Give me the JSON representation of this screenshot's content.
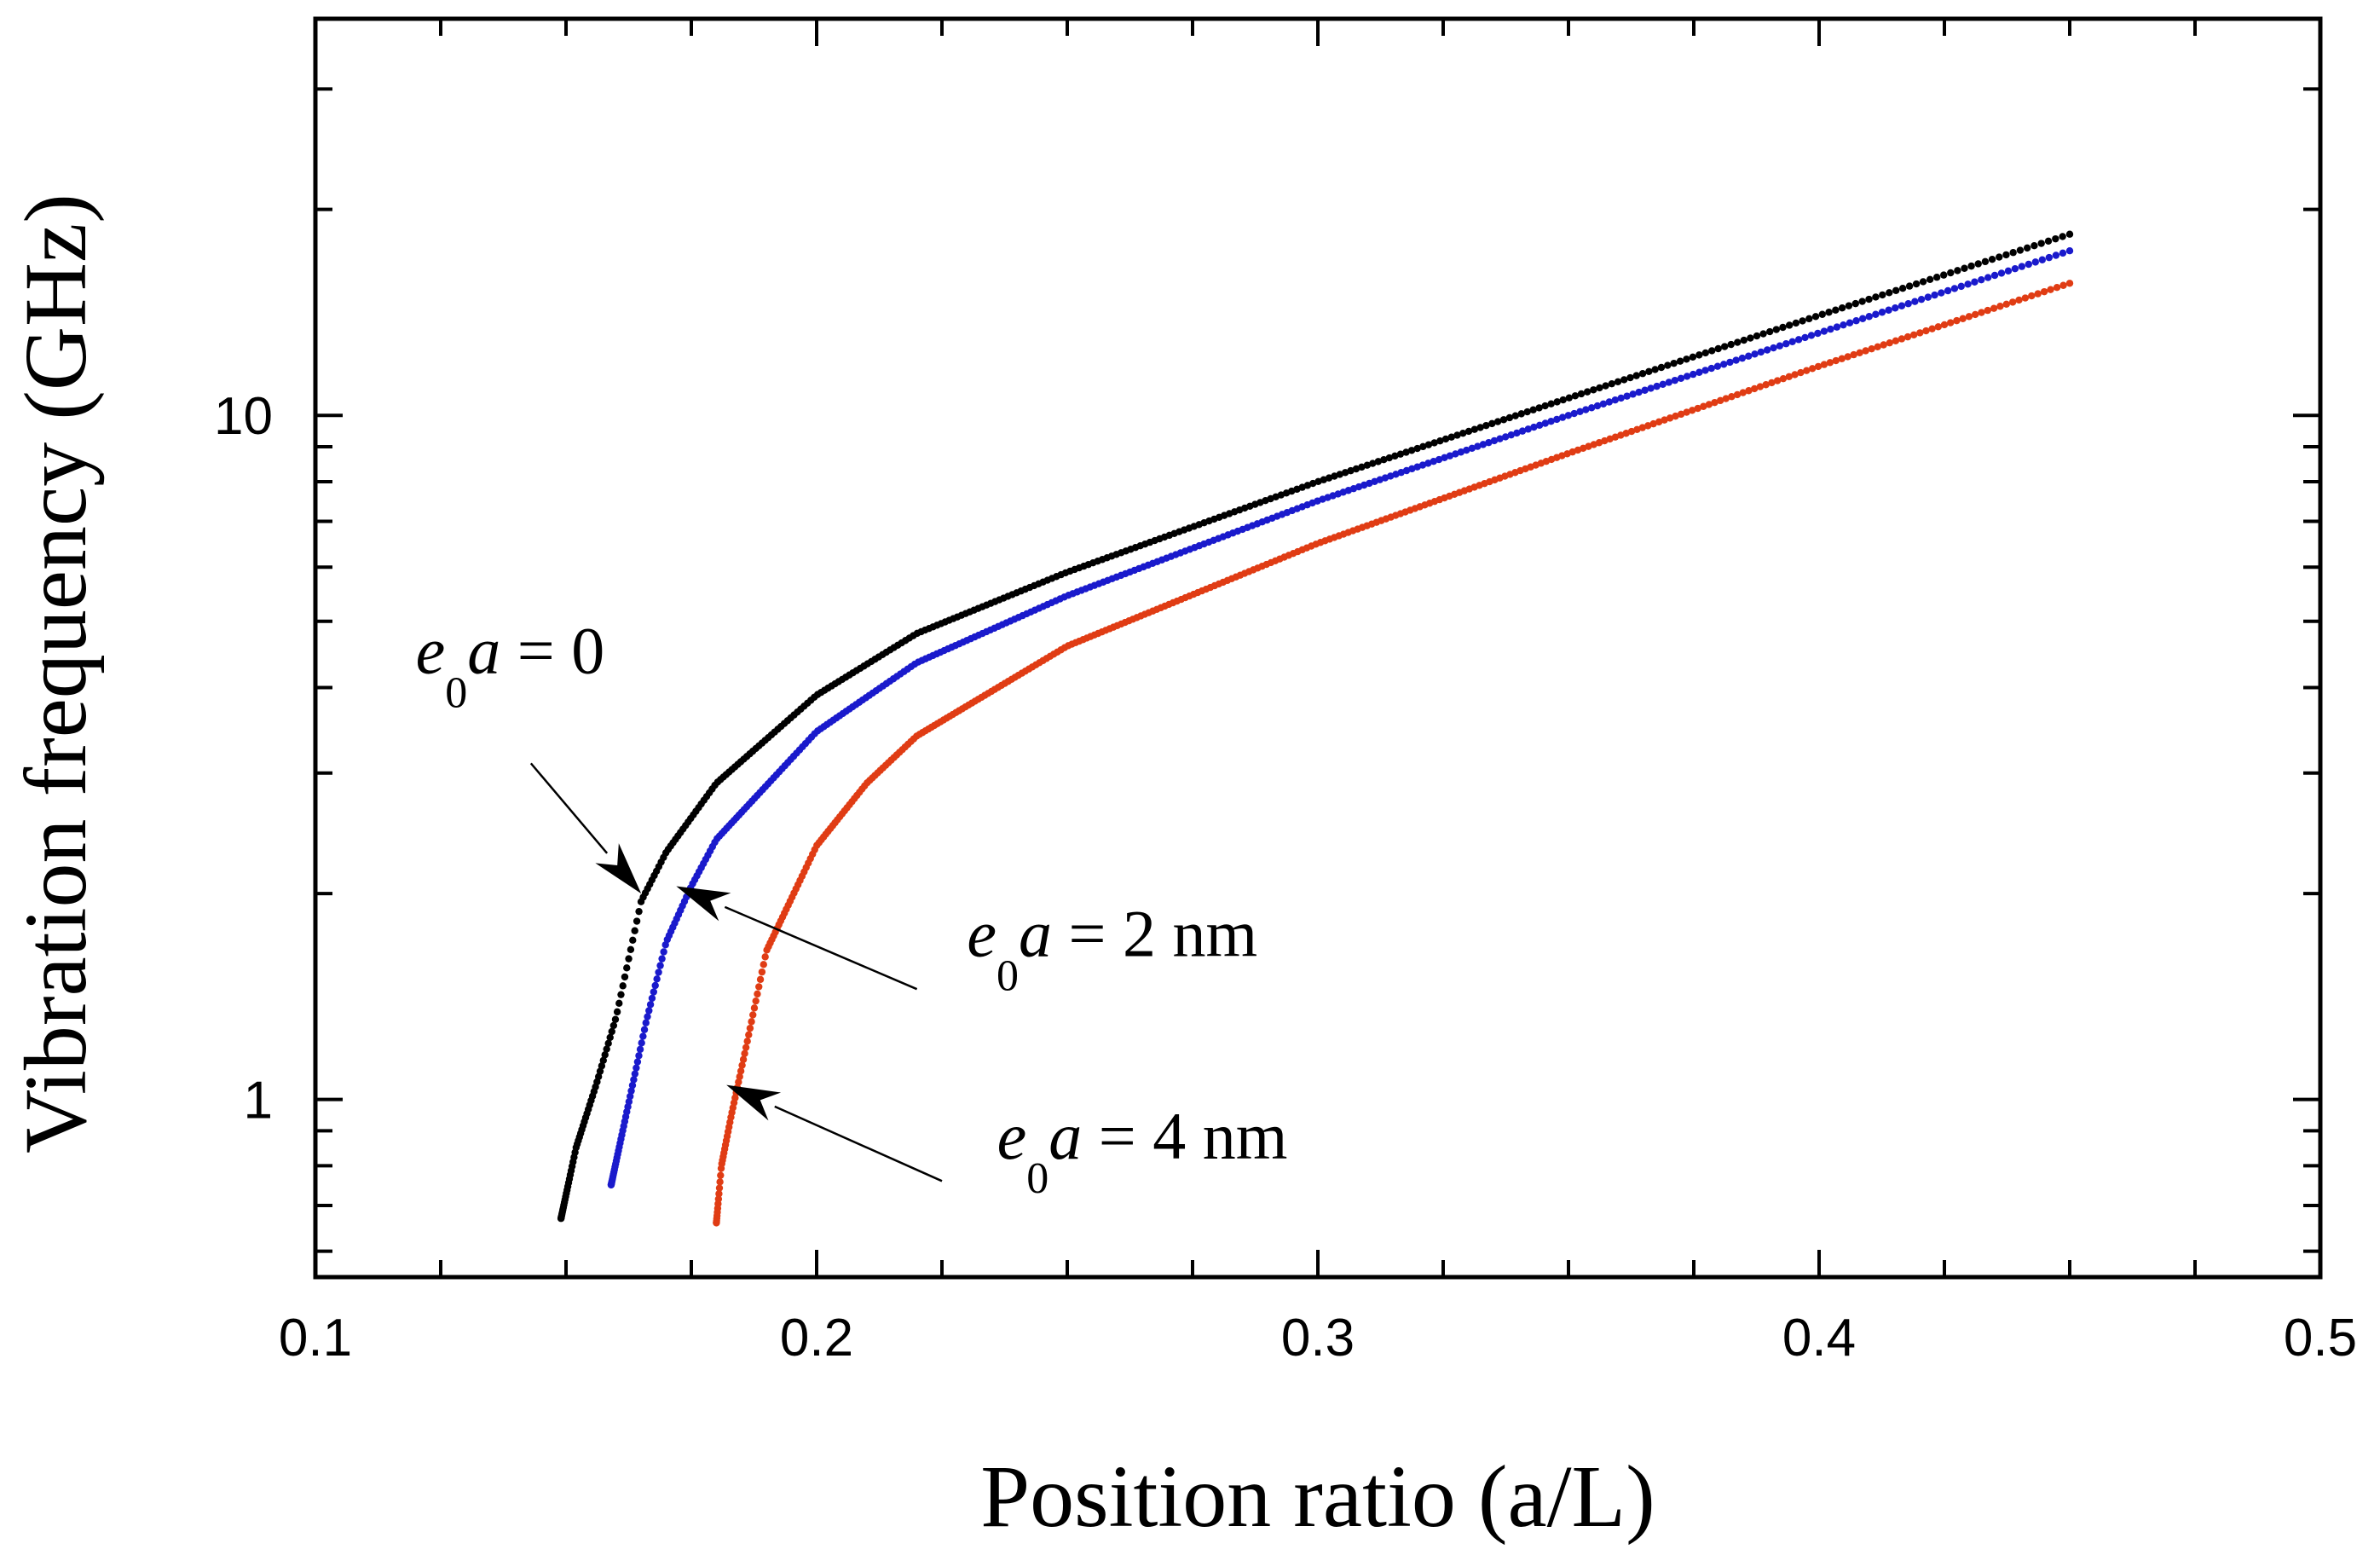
{
  "chart_data": {
    "type": "scatter",
    "title": "",
    "xlabel": "Position ratio (a/L)",
    "ylabel": "Vibration frequency (GHz)",
    "xlim": [
      0.1,
      0.5
    ],
    "ylim": [
      0.55,
      38
    ],
    "yscale": "log",
    "x_tick_labels": [
      "0.1",
      "0.2",
      "0.3",
      "0.4",
      "0.5"
    ],
    "x_ticks": [
      0.1,
      0.2,
      0.3,
      0.4,
      0.5
    ],
    "y_tick_labels": [
      "1",
      "10"
    ],
    "y_ticks": [
      1,
      10
    ],
    "series": [
      {
        "name": "e0a = 0",
        "color": "#000000",
        "x_start": 0.149,
        "x_end": 0.45,
        "anchors": [
          [
            0.149,
            0.67
          ],
          [
            0.152,
            0.85
          ],
          [
            0.156,
            1.05
          ],
          [
            0.16,
            1.32
          ],
          [
            0.165,
            1.95
          ],
          [
            0.17,
            2.3
          ],
          [
            0.18,
            2.9
          ],
          [
            0.2,
            3.9
          ],
          [
            0.22,
            4.8
          ],
          [
            0.25,
            5.9
          ],
          [
            0.3,
            8.0
          ],
          [
            0.35,
            10.6
          ],
          [
            0.4,
            14.0
          ],
          [
            0.45,
            18.4
          ]
        ]
      },
      {
        "name": "e0a = 2 nm",
        "color": "#1a1acc",
        "x_start": 0.159,
        "x_end": 0.45,
        "anchors": [
          [
            0.159,
            0.75
          ],
          [
            0.162,
            0.95
          ],
          [
            0.166,
            1.3
          ],
          [
            0.17,
            1.7
          ],
          [
            0.175,
            2.05
          ],
          [
            0.18,
            2.4
          ],
          [
            0.2,
            3.45
          ],
          [
            0.22,
            4.35
          ],
          [
            0.25,
            5.45
          ],
          [
            0.3,
            7.5
          ],
          [
            0.35,
            10.0
          ],
          [
            0.4,
            13.2
          ],
          [
            0.45,
            17.4
          ]
        ]
      },
      {
        "name": "e0a = 4 nm",
        "color": "#e03c14",
        "x_start": 0.18,
        "x_end": 0.45,
        "anchors": [
          [
            0.18,
            0.66
          ],
          [
            0.181,
            0.8
          ],
          [
            0.183,
            0.95
          ],
          [
            0.186,
            1.2
          ],
          [
            0.19,
            1.65
          ],
          [
            0.2,
            2.35
          ],
          [
            0.21,
            2.9
          ],
          [
            0.22,
            3.4
          ],
          [
            0.25,
            4.6
          ],
          [
            0.3,
            6.5
          ],
          [
            0.35,
            8.8
          ],
          [
            0.4,
            11.8
          ],
          [
            0.45,
            15.6
          ]
        ]
      }
    ],
    "annotations": [
      {
        "id": "ann0",
        "prefix": "e",
        "sub": "0",
        "rest": "a = 0",
        "text_x": 0.12,
        "text_y": 4.2,
        "from": [
          0.143,
          3.1
        ],
        "to": [
          0.165,
          2.0
        ]
      },
      {
        "id": "ann2",
        "prefix": "e",
        "sub": "0",
        "rest": "a = 2 nm",
        "text_x": 0.23,
        "text_y": 1.62,
        "from": [
          0.22,
          1.45
        ],
        "to": [
          0.172,
          2.05
        ]
      },
      {
        "id": "ann4",
        "prefix": "e",
        "sub": "0",
        "rest": "a = 4 nm",
        "text_x": 0.236,
        "text_y": 0.82,
        "from": [
          0.225,
          0.76
        ],
        "to": [
          0.182,
          1.05
        ]
      }
    ]
  }
}
